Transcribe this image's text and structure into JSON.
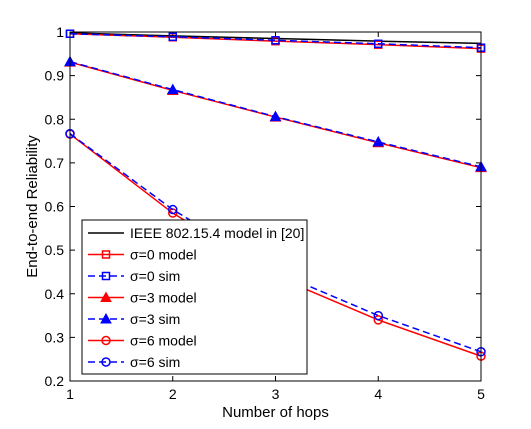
{
  "chart_data": {
    "type": "line",
    "title": "",
    "xlabel": "Number of hops",
    "ylabel": "End-to-end Reliability",
    "xlim": [
      1,
      5
    ],
    "ylim": [
      0.2,
      1.0
    ],
    "x": [
      1,
      2,
      3,
      4,
      5
    ],
    "xticks": [
      "1",
      "2",
      "3",
      "4",
      "5"
    ],
    "yticks": [
      "0.2",
      "0.3",
      "0.4",
      "0.5",
      "0.6",
      "0.7",
      "0.8",
      "0.9",
      "1"
    ],
    "grid": false,
    "legend_position": "bottom-left",
    "series": [
      {
        "name": "IEEE 802.15.4 model in [20]",
        "color": "#000000",
        "dash": "solid",
        "marker": "none",
        "values": [
          0.998,
          0.991,
          0.985,
          0.979,
          0.974
        ]
      },
      {
        "name": "σ=0 model",
        "color": "#ff0000",
        "dash": "solid",
        "marker": "square",
        "values": [
          0.996,
          0.988,
          0.979,
          0.971,
          0.962
        ]
      },
      {
        "name": "σ=0 sim",
        "color": "#0000ff",
        "dash": "dashed",
        "marker": "square",
        "values": [
          0.996,
          0.989,
          0.981,
          0.973,
          0.964
        ]
      },
      {
        "name": "σ=3 model",
        "color": "#ff0000",
        "dash": "solid",
        "marker": "triangle",
        "values": [
          0.931,
          0.866,
          0.805,
          0.746,
          0.689
        ]
      },
      {
        "name": "σ=3 sim",
        "color": "#0000ff",
        "dash": "dashed",
        "marker": "triangle",
        "values": [
          0.932,
          0.868,
          0.806,
          0.748,
          0.691
        ]
      },
      {
        "name": "σ=6 model",
        "color": "#ff0000",
        "dash": "solid",
        "marker": "circle",
        "values": [
          0.766,
          0.585,
          0.44,
          0.34,
          0.257
        ]
      },
      {
        "name": "σ=6 sim",
        "color": "#0000ff",
        "dash": "dashed",
        "marker": "circle",
        "values": [
          0.767,
          0.593,
          0.45,
          0.35,
          0.267
        ]
      }
    ]
  }
}
